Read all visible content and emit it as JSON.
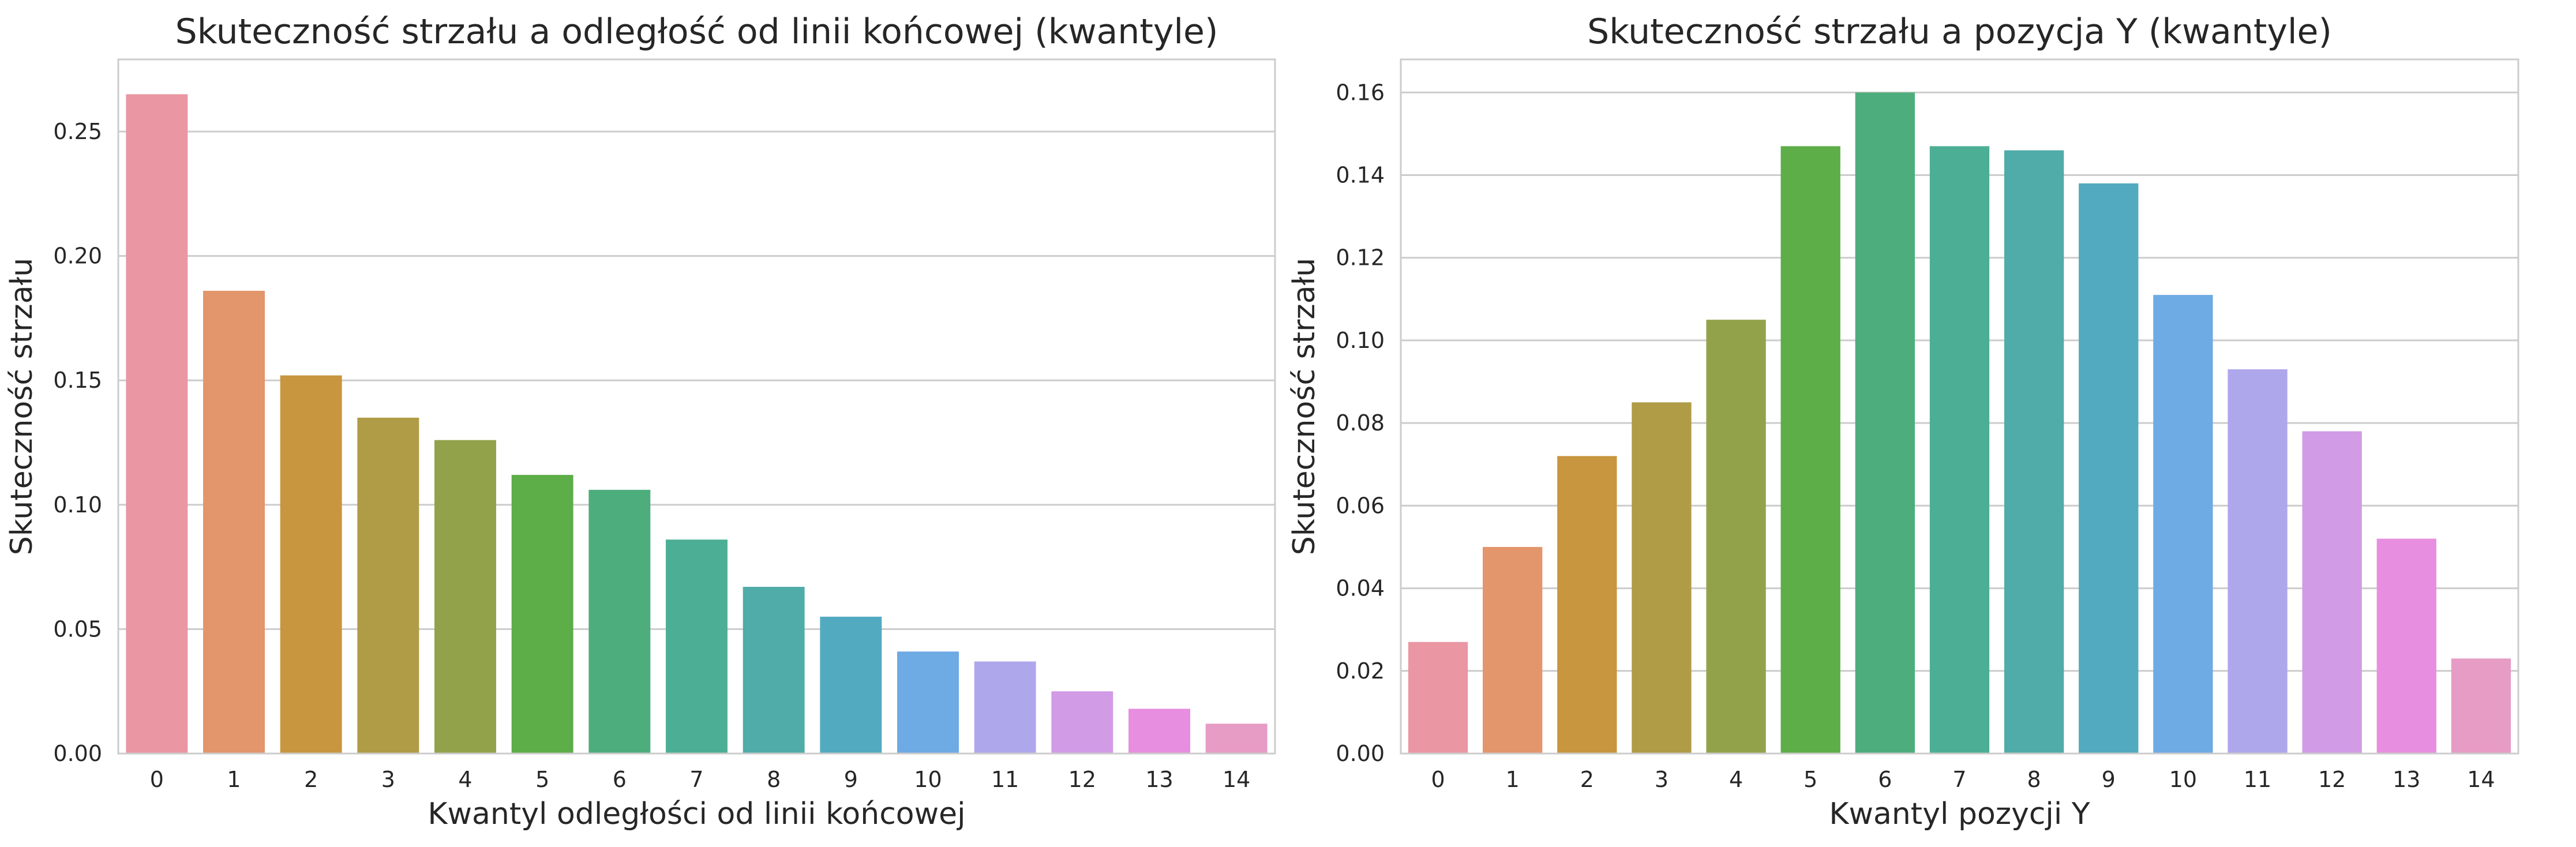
{
  "chart_data": [
    {
      "type": "bar",
      "title": "Skuteczność strzału a odległość od linii końcowej (kwantyle)",
      "xlabel": "Kwantyl odległości od linii końcowej",
      "ylabel": "Skuteczność strzału",
      "categories": [
        "0",
        "1",
        "2",
        "3",
        "4",
        "5",
        "6",
        "7",
        "8",
        "9",
        "10",
        "11",
        "12",
        "13",
        "14"
      ],
      "values": [
        0.265,
        0.186,
        0.152,
        0.135,
        0.126,
        0.112,
        0.106,
        0.086,
        0.067,
        0.055,
        0.041,
        0.037,
        0.025,
        0.018,
        0.012
      ],
      "ylim": [
        0,
        0.279
      ],
      "yticks": [
        "0.00",
        "0.05",
        "0.10",
        "0.15",
        "0.20",
        "0.25"
      ],
      "grid": "horizontal",
      "colors": [
        "#ea96a3",
        "#e3956b",
        "#c8963f",
        "#b09b47",
        "#92a24a",
        "#5dad49",
        "#4ead7c",
        "#4caf95",
        "#4faca8",
        "#52aac0",
        "#6eaae4",
        "#afa7ec",
        "#d19be5",
        "#e78ee0",
        "#e69cc5"
      ]
    },
    {
      "type": "bar",
      "title": "Skuteczność strzału a pozycja Y (kwantyle)",
      "xlabel": "Kwantyl pozycji Y",
      "ylabel": "Skuteczność strzału",
      "categories": [
        "0",
        "1",
        "2",
        "3",
        "4",
        "5",
        "6",
        "7",
        "8",
        "9",
        "10",
        "11",
        "12",
        "13",
        "14"
      ],
      "values": [
        0.027,
        0.05,
        0.072,
        0.085,
        0.105,
        0.147,
        0.16,
        0.147,
        0.146,
        0.138,
        0.111,
        0.093,
        0.078,
        0.052,
        0.023
      ],
      "ylim": [
        0,
        0.168
      ],
      "yticks": [
        "0.00",
        "0.02",
        "0.04",
        "0.06",
        "0.08",
        "0.10",
        "0.12",
        "0.14",
        "0.16"
      ],
      "grid": "horizontal",
      "colors": [
        "#ea96a3",
        "#e3956b",
        "#c8963f",
        "#b09b47",
        "#92a24a",
        "#5dad49",
        "#4ead7c",
        "#4caf95",
        "#4faca8",
        "#52aac0",
        "#6eaae4",
        "#afa7ec",
        "#d19be5",
        "#e78ee0",
        "#e69cc5"
      ]
    }
  ]
}
